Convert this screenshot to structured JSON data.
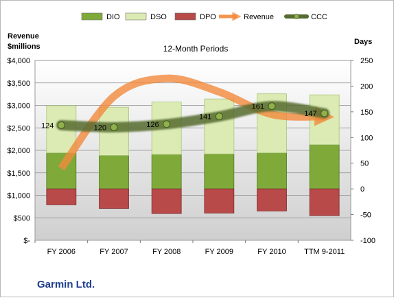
{
  "chart_data": {
    "type": "bar",
    "title": "12-Month Periods",
    "company": "Garmin Ltd.",
    "left_axis_label": [
      "Revenue",
      "$millions"
    ],
    "right_axis_label": "Days",
    "categories": [
      "FY 2006",
      "FY 2007",
      "FY 2008",
      "FY 2009",
      "FY 2010",
      "TTM 9-2011"
    ],
    "left_axis": {
      "range": [
        0,
        4000
      ],
      "ticks": [
        0,
        500,
        1000,
        1500,
        2000,
        2500,
        3000,
        3500,
        4000
      ],
      "tick_labels": [
        "$-",
        "$500",
        "$1,000",
        "$1,500",
        "$2,000",
        "$2,500",
        "$3,000",
        "$3,500",
        "$4,000"
      ]
    },
    "right_axis": {
      "range": [
        -100,
        250
      ],
      "ticks": [
        -100,
        -50,
        0,
        50,
        100,
        150,
        200,
        250
      ],
      "tick_labels": [
        "-100",
        "-50",
        "0",
        "50",
        "100",
        "150",
        "200",
        "250"
      ]
    },
    "grid": true,
    "legend_position": "top",
    "series": [
      {
        "name": "DIO",
        "axis": "right",
        "kind": "stacked-bar",
        "color": "#7faa3a",
        "values": [
          70,
          65,
          67,
          68,
          70,
          86
        ]
      },
      {
        "name": "DSO",
        "axis": "right",
        "kind": "stacked-bar",
        "color": "#dcebb4",
        "values": [
          92,
          94,
          102,
          107,
          115,
          97
        ]
      },
      {
        "name": "DPO",
        "axis": "right",
        "kind": "negative-bar",
        "color": "#b84a4a",
        "values": [
          -31,
          -38,
          -48,
          -47,
          -43,
          -52
        ]
      },
      {
        "name": "Revenue",
        "axis": "left",
        "kind": "line",
        "color": "#f28a3c",
        "values": [
          1600,
          3200,
          3600,
          3300,
          2800,
          2750
        ]
      },
      {
        "name": "CCC",
        "axis": "right",
        "kind": "line",
        "color": "#556b2f",
        "values": [
          124,
          120,
          126,
          141,
          161,
          147
        ],
        "labels": [
          "124",
          "120",
          "126",
          "141",
          "161",
          "147"
        ]
      }
    ]
  }
}
